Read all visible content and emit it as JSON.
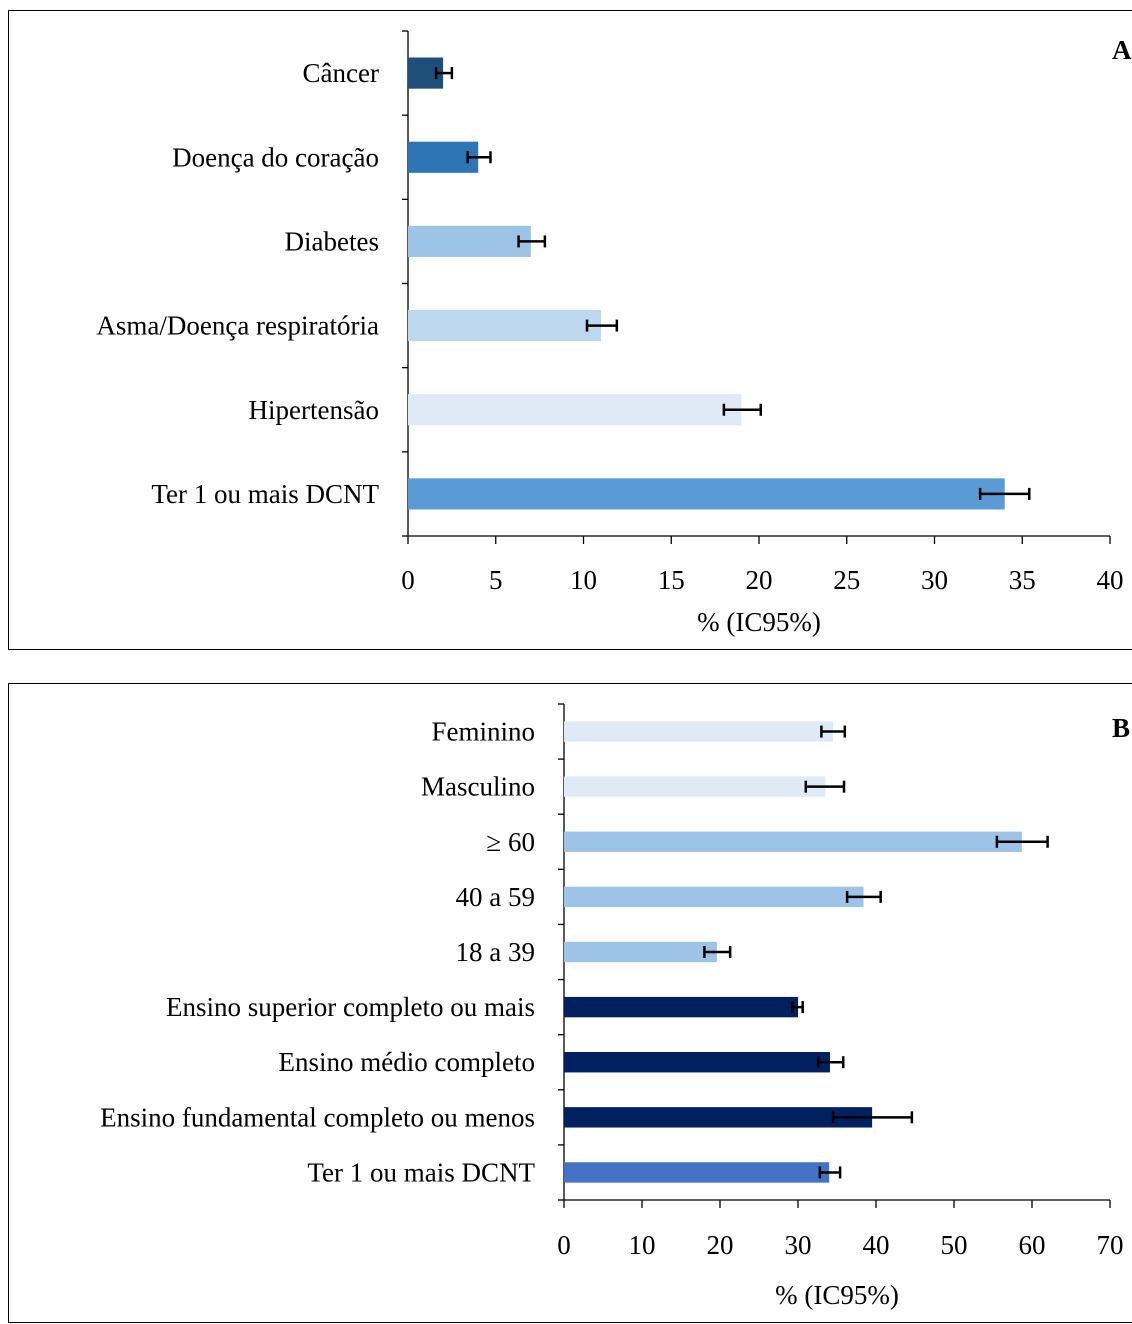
{
  "chart_data": [
    {
      "type": "bar",
      "orientation": "horizontal",
      "panel_label": "A",
      "categories": [
        "Câncer",
        "Doença do coração",
        "Diabetes",
        "Asma/Doença respiratória",
        "Hipertensão",
        "Ter 1 ou  mais DCNT"
      ],
      "values": [
        2,
        4,
        7,
        11,
        19,
        34
      ],
      "ci_low": [
        1.6,
        3.4,
        6.3,
        10.2,
        18.0,
        32.6
      ],
      "ci_high": [
        2.5,
        4.7,
        7.8,
        11.9,
        20.1,
        35.4
      ],
      "colors": [
        "#1f4e79",
        "#2e75b6",
        "#9dc3e6",
        "#bdd7ee",
        "#deebf7",
        "#5b9bd5"
      ],
      "xlabel": "% (IC95%)",
      "xlim": [
        0,
        40
      ],
      "xticks": [
        0,
        5,
        10,
        15,
        20,
        25,
        30,
        35,
        40
      ],
      "grid": false
    },
    {
      "type": "bar",
      "orientation": "horizontal",
      "panel_label": "B",
      "categories": [
        "Feminino",
        "Masculino",
        "≥ 60",
        "40 a 59",
        "18 a 39",
        "Ensino superior completo ou mais",
        "Ensino médio completo",
        "Ensino fundamental completo ou menos",
        "Ter 1 ou  mais DCNT"
      ],
      "values": [
        34.5,
        33.5,
        58.7,
        38.4,
        19.6,
        30.0,
        34.1,
        39.5,
        34.0
      ],
      "ci_low": [
        33.0,
        31.0,
        55.5,
        36.3,
        18.0,
        29.3,
        32.6,
        34.5,
        32.8
      ],
      "ci_high": [
        36.0,
        35.9,
        62.0,
        40.6,
        21.3,
        30.6,
        35.8,
        44.6,
        35.4
      ],
      "colors": [
        "#deebf7",
        "#deebf7",
        "#9dc3e6",
        "#9dc3e6",
        "#9dc3e6",
        "#002060",
        "#002060",
        "#002060",
        "#4472c4"
      ],
      "xlabel": "% (IC95%)",
      "xlim": [
        0,
        70
      ],
      "xticks": [
        0,
        10,
        20,
        30,
        40,
        50,
        60,
        70
      ],
      "grid": false
    }
  ]
}
